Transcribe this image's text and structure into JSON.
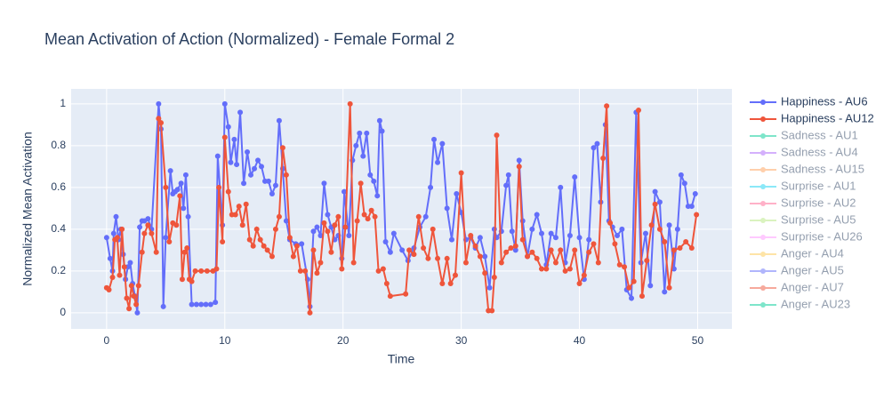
{
  "chart_data": {
    "type": "line",
    "title": "Mean Activation of Action (Normalized) - Female Formal 2",
    "x_label": "Time",
    "y_label": "Normalized Mean Activation",
    "xlim": [
      -3,
      52.9
    ],
    "ylim": [
      -0.077,
      1.072
    ],
    "xticks": [
      0,
      10,
      20,
      30,
      40,
      50
    ],
    "yticks": [
      0,
      0.2,
      0.4,
      0.6,
      0.8,
      1
    ],
    "grid": true,
    "legend": "right",
    "series": [
      {
        "name": "Happiness - AU6",
        "color": "#636efa",
        "visible": true,
        "x": [
          0,
          0.3,
          0.5,
          0.6,
          0.8,
          1.0,
          1.2,
          1.4,
          1.6,
          1.8,
          2.0,
          2.2,
          2.4,
          2.6,
          2.8,
          3.0,
          3.2,
          3.5,
          3.8,
          4.4,
          4.6,
          4.8,
          5.0,
          5.4,
          5.6,
          5.8,
          6.0,
          6.3,
          6.5,
          6.7,
          6.9,
          7.2,
          7.6,
          8.0,
          8.4,
          8.8,
          9.2,
          9.4,
          9.8,
          10.0,
          10.3,
          10.5,
          10.8,
          11.0,
          11.3,
          11.6,
          11.9,
          12.2,
          12.5,
          12.8,
          13.1,
          13.4,
          13.7,
          14.0,
          14.3,
          14.6,
          14.9,
          15.2,
          15.5,
          16.0,
          16.5,
          17.0,
          17.2,
          17.5,
          17.8,
          18.1,
          18.4,
          18.7,
          19.0,
          19.3,
          19.6,
          19.9,
          20.1,
          20.5,
          20.8,
          21.1,
          21.4,
          21.7,
          22.0,
          22.3,
          22.6,
          22.9,
          23.1,
          23.3,
          23.6,
          24.0,
          24.3,
          25.0,
          25.5,
          26.0,
          26.5,
          27.0,
          27.4,
          27.7,
          28.0,
          28.4,
          28.8,
          29.2,
          29.6,
          30.0,
          30.4,
          30.8,
          31.2,
          31.6,
          32.0,
          32.4,
          32.8,
          33.0,
          33.4,
          33.8,
          34.0,
          34.3,
          34.6,
          34.9,
          35.2,
          35.6,
          36.0,
          36.4,
          36.8,
          37.2,
          37.6,
          38.0,
          38.4,
          38.8,
          39.2,
          39.6,
          40.0,
          40.4,
          40.8,
          41.2,
          41.5,
          41.8,
          42.2,
          42.5,
          42.8,
          43.2,
          43.6,
          44.0,
          44.4,
          44.8,
          45.2,
          45.6,
          46.0,
          46.4,
          46.8,
          47.2,
          47.6,
          48.0,
          48.3,
          48.6,
          48.9,
          49.2,
          49.5,
          49.8
        ],
        "values": [
          0.36,
          0.26,
          0.2,
          0.38,
          0.46,
          0.35,
          0.4,
          0.28,
          0.16,
          0.22,
          0.24,
          0.14,
          0.08,
          0.0,
          0.41,
          0.44,
          0.44,
          0.45,
          0.4,
          1.0,
          0.88,
          0.03,
          0.36,
          0.68,
          0.57,
          0.58,
          0.59,
          0.62,
          0.5,
          0.66,
          0.46,
          0.04,
          0.04,
          0.04,
          0.04,
          0.04,
          0.05,
          0.75,
          0.42,
          1.0,
          0.89,
          0.72,
          0.83,
          0.71,
          0.96,
          0.62,
          0.77,
          0.66,
          0.69,
          0.73,
          0.7,
          0.63,
          0.63,
          0.57,
          0.61,
          0.92,
          0.69,
          0.44,
          0.35,
          0.33,
          0.33,
          0.16,
          0.03,
          0.39,
          0.41,
          0.37,
          0.62,
          0.47,
          0.41,
          0.35,
          0.37,
          0.26,
          0.58,
          0.37,
          0.73,
          0.8,
          0.86,
          0.75,
          0.86,
          0.66,
          0.63,
          0.56,
          0.92,
          0.87,
          0.34,
          0.29,
          0.38,
          0.3,
          0.25,
          0.31,
          0.41,
          0.46,
          0.6,
          0.83,
          0.72,
          0.81,
          0.5,
          0.35,
          0.57,
          0.48,
          0.35,
          0.36,
          0.31,
          0.36,
          0.27,
          0.12,
          0.4,
          0.36,
          0.39,
          0.61,
          0.66,
          0.39,
          0.3,
          0.73,
          0.44,
          0.27,
          0.4,
          0.47,
          0.38,
          0.23,
          0.38,
          0.36,
          0.6,
          0.24,
          0.37,
          0.65,
          0.36,
          0.16,
          0.35,
          0.79,
          0.81,
          0.53,
          0.9,
          0.44,
          0.41,
          0.37,
          0.4,
          0.11,
          0.07,
          0.96,
          0.24,
          0.38,
          0.13,
          0.58,
          0.53,
          0.1,
          0.42,
          0.21,
          0.4,
          0.66,
          0.62,
          0.51,
          0.51,
          0.57
        ]
      },
      {
        "name": "Happiness - AU12",
        "color": "#ef553b",
        "visible": true,
        "x": [
          0,
          0.2,
          0.5,
          0.7,
          0.9,
          1.1,
          1.3,
          1.5,
          1.7,
          1.9,
          2.1,
          2.3,
          2.5,
          2.7,
          3.0,
          3.2,
          3.5,
          3.8,
          4.2,
          4.4,
          4.6,
          5.0,
          5.3,
          5.6,
          5.9,
          6.2,
          6.4,
          6.6,
          6.8,
          7.0,
          7.2,
          7.5,
          8.0,
          8.5,
          9.0,
          9.3,
          9.5,
          9.8,
          10.0,
          10.3,
          10.6,
          10.9,
          11.2,
          11.5,
          11.8,
          12.1,
          12.4,
          12.7,
          13.0,
          13.3,
          13.6,
          14.0,
          14.3,
          14.6,
          14.9,
          15.2,
          15.5,
          15.8,
          16.1,
          16.4,
          16.8,
          17.2,
          17.5,
          17.8,
          18.1,
          18.4,
          18.7,
          19.0,
          19.3,
          19.6,
          19.9,
          20.2,
          20.6,
          20.9,
          21.2,
          21.5,
          21.8,
          22.1,
          22.4,
          22.7,
          23.0,
          23.4,
          23.7,
          24.0,
          25.3,
          25.6,
          26.0,
          26.4,
          26.8,
          27.2,
          27.6,
          28.0,
          28.4,
          28.8,
          29.1,
          29.5,
          30.0,
          30.4,
          30.8,
          31.2,
          31.6,
          32.0,
          32.3,
          32.6,
          32.8,
          33.0,
          33.4,
          33.8,
          34.2,
          34.6,
          34.9,
          35.2,
          35.6,
          36.0,
          36.4,
          36.8,
          37.2,
          37.6,
          38.0,
          38.4,
          38.8,
          39.2,
          39.6,
          40.0,
          40.4,
          40.8,
          41.2,
          41.6,
          42.0,
          42.3,
          42.6,
          43.0,
          43.4,
          43.8,
          44.2,
          44.6,
          45.0,
          45.3,
          45.7,
          46.1,
          46.4,
          46.8,
          47.2,
          47.6,
          48.0,
          48.5,
          49.0,
          49.5,
          49.9
        ],
        "values": [
          0.12,
          0.11,
          0.17,
          0.35,
          0.36,
          0.18,
          0.4,
          0.22,
          0.07,
          0.02,
          0.13,
          0.08,
          0.04,
          0.13,
          0.29,
          0.38,
          0.42,
          0.38,
          0.29,
          0.93,
          0.91,
          0.6,
          0.34,
          0.43,
          0.42,
          0.56,
          0.16,
          0.29,
          0.31,
          0.16,
          0.15,
          0.2,
          0.2,
          0.2,
          0.2,
          0.21,
          0.6,
          0.34,
          0.84,
          0.58,
          0.47,
          0.47,
          0.51,
          0.42,
          0.52,
          0.35,
          0.32,
          0.4,
          0.35,
          0.32,
          0.3,
          0.27,
          0.4,
          0.46,
          0.79,
          0.66,
          0.36,
          0.27,
          0.32,
          0.2,
          0.2,
          0.0,
          0.3,
          0.19,
          0.24,
          0.43,
          0.39,
          0.29,
          0.42,
          0.46,
          0.21,
          0.41,
          1.0,
          0.24,
          0.44,
          0.62,
          0.47,
          0.45,
          0.49,
          0.46,
          0.2,
          0.21,
          0.14,
          0.08,
          0.09,
          0.3,
          0.28,
          0.46,
          0.31,
          0.26,
          0.4,
          0.26,
          0.14,
          0.26,
          0.14,
          0.18,
          0.67,
          0.24,
          0.37,
          0.32,
          0.27,
          0.19,
          0.01,
          0.01,
          0.17,
          0.85,
          0.24,
          0.29,
          0.31,
          0.32,
          0.7,
          0.35,
          0.27,
          0.29,
          0.26,
          0.21,
          0.21,
          0.3,
          0.24,
          0.3,
          0.2,
          0.21,
          0.3,
          0.14,
          0.18,
          0.29,
          0.33,
          0.24,
          0.74,
          0.99,
          0.43,
          0.33,
          0.23,
          0.22,
          0.12,
          0.15,
          0.97,
          0.08,
          0.25,
          0.42,
          0.52,
          0.4,
          0.34,
          0.12,
          0.3,
          0.31,
          0.34,
          0.31,
          0.47
        ]
      },
      {
        "name": "Sadness - AU1",
        "color": "#00cc96",
        "visible": false
      },
      {
        "name": "Sadness - AU4",
        "color": "#ab63fa",
        "visible": false
      },
      {
        "name": "Sadness - AU15",
        "color": "#ffa15a",
        "visible": false
      },
      {
        "name": "Surprise - AU1",
        "color": "#19d3f3",
        "visible": false
      },
      {
        "name": "Surprise - AU2",
        "color": "#ff6692",
        "visible": false
      },
      {
        "name": "Surprise - AU5",
        "color": "#b6e880",
        "visible": false
      },
      {
        "name": "Surprise - AU26",
        "color": "#ff97ff",
        "visible": false
      },
      {
        "name": "Anger - AU4",
        "color": "#fecb52",
        "visible": false
      },
      {
        "name": "Anger - AU5",
        "color": "#636efa",
        "visible": false
      },
      {
        "name": "Anger - AU7",
        "color": "#ef553b",
        "visible": false
      },
      {
        "name": "Anger - AU23",
        "color": "#00cc96",
        "visible": false
      }
    ]
  }
}
